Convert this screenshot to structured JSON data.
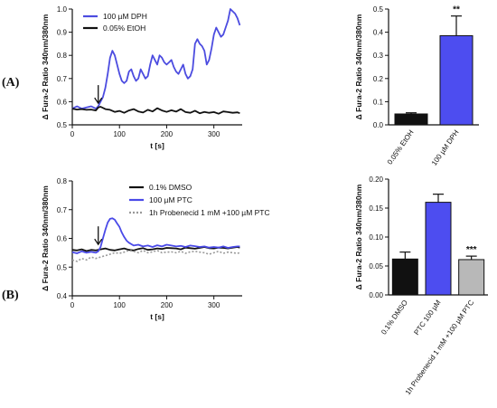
{
  "panels": {
    "a": {
      "label": "(A)"
    },
    "b": {
      "label": "(B)"
    }
  },
  "colors": {
    "dph": "#4c4ce0",
    "ptc": "#4a4ae8",
    "ethanol": "#111111",
    "dmso": "#111111",
    "probenecid": "#999999",
    "bar_black": "#111111",
    "bar_blue": "#4d4df0",
    "bar_grey": "#b8b8b8"
  },
  "chart_data": [
    {
      "id": "a_trace",
      "type": "line",
      "xlabel": "t [s]",
      "ylabel": "Δ Fura-2 Ratio 340nm/380nm",
      "xlim": [
        0,
        360
      ],
      "ylim": [
        0.5,
        1.0
      ],
      "xticks": [
        0,
        100,
        200,
        300
      ],
      "yticks": [
        0.5,
        0.6,
        0.7,
        0.8,
        0.9,
        1.0
      ],
      "ytick_labels": [
        "0.5",
        "0.6",
        "0.7",
        "0.8",
        "0.9",
        "1.0"
      ],
      "arrow_at_x": 55,
      "legend_position": "top-left",
      "series": [
        {
          "name": "100 µM DPH",
          "color": "#4c4ce0",
          "x": [
            0,
            10,
            20,
            30,
            40,
            50,
            55,
            60,
            65,
            70,
            75,
            80,
            85,
            90,
            95,
            100,
            105,
            110,
            115,
            120,
            125,
            130,
            135,
            140,
            145,
            150,
            155,
            160,
            165,
            170,
            175,
            180,
            185,
            190,
            195,
            200,
            205,
            210,
            215,
            220,
            225,
            230,
            235,
            240,
            245,
            250,
            255,
            260,
            265,
            270,
            275,
            280,
            285,
            290,
            295,
            300,
            305,
            310,
            315,
            320,
            325,
            330,
            335,
            340,
            345,
            350,
            355
          ],
          "y": [
            0.57,
            0.58,
            0.57,
            0.575,
            0.58,
            0.57,
            0.58,
            0.6,
            0.62,
            0.66,
            0.72,
            0.79,
            0.82,
            0.8,
            0.76,
            0.72,
            0.69,
            0.68,
            0.69,
            0.73,
            0.74,
            0.71,
            0.69,
            0.7,
            0.74,
            0.72,
            0.7,
            0.71,
            0.76,
            0.8,
            0.78,
            0.76,
            0.8,
            0.79,
            0.77,
            0.76,
            0.77,
            0.78,
            0.75,
            0.73,
            0.72,
            0.74,
            0.76,
            0.72,
            0.7,
            0.71,
            0.74,
            0.85,
            0.87,
            0.85,
            0.84,
            0.82,
            0.76,
            0.78,
            0.83,
            0.89,
            0.92,
            0.9,
            0.88,
            0.89,
            0.92,
            0.95,
            1.0,
            0.99,
            0.98,
            0.96,
            0.93
          ]
        },
        {
          "name": "0.05% EtOH",
          "color": "#111111",
          "x": [
            0,
            10,
            20,
            30,
            40,
            50,
            55,
            60,
            70,
            80,
            90,
            100,
            110,
            120,
            130,
            140,
            150,
            160,
            170,
            180,
            190,
            200,
            210,
            220,
            230,
            240,
            250,
            260,
            270,
            280,
            290,
            300,
            310,
            320,
            330,
            340,
            350,
            355
          ],
          "y": [
            0.57,
            0.566,
            0.568,
            0.565,
            0.566,
            0.562,
            0.575,
            0.578,
            0.568,
            0.565,
            0.556,
            0.56,
            0.552,
            0.562,
            0.568,
            0.558,
            0.553,
            0.565,
            0.558,
            0.572,
            0.562,
            0.556,
            0.563,
            0.557,
            0.568,
            0.555,
            0.552,
            0.561,
            0.55,
            0.556,
            0.552,
            0.555,
            0.548,
            0.558,
            0.555,
            0.552,
            0.554,
            0.55
          ]
        }
      ]
    },
    {
      "id": "a_bar",
      "type": "bar",
      "ylabel": "Δ Fura-2 Ratio 340nm/380nm",
      "ylim": [
        0,
        0.5
      ],
      "yticks": [
        0.0,
        0.1,
        0.2,
        0.3,
        0.4,
        0.5
      ],
      "ytick_labels": [
        "0.0",
        "0.1",
        "0.2",
        "0.3",
        "0.4",
        "0.5"
      ],
      "categories": [
        "0.05% EtOH",
        "100 µM DPH"
      ],
      "values": [
        0.047,
        0.385
      ],
      "errors": [
        0.005,
        0.085
      ],
      "colors": [
        "#111111",
        "#4d4df0"
      ],
      "annotations": [
        "",
        "**"
      ]
    },
    {
      "id": "b_trace",
      "type": "line",
      "xlabel": "t [s]",
      "ylabel": "Δ Fura-2 Ratio 340nm/380nm",
      "xlim": [
        0,
        360
      ],
      "ylim": [
        0.4,
        0.8
      ],
      "xticks": [
        0,
        100,
        200,
        300
      ],
      "yticks": [
        0.4,
        0.5,
        0.6,
        0.7,
        0.8
      ],
      "ytick_labels": [
        "0.4",
        "0.5",
        "0.6",
        "0.7",
        "0.8"
      ],
      "arrow_at_x": 55,
      "legend_position": "top-right",
      "series": [
        {
          "name": "0.1% DMSO",
          "color": "#111111",
          "x": [
            0,
            10,
            20,
            30,
            40,
            50,
            60,
            70,
            80,
            90,
            100,
            110,
            120,
            130,
            140,
            150,
            160,
            170,
            180,
            190,
            200,
            210,
            220,
            230,
            240,
            250,
            260,
            270,
            280,
            290,
            300,
            310,
            320,
            330,
            340,
            350,
            355
          ],
          "y": [
            0.56,
            0.558,
            0.562,
            0.556,
            0.56,
            0.558,
            0.562,
            0.565,
            0.56,
            0.558,
            0.562,
            0.565,
            0.56,
            0.558,
            0.563,
            0.566,
            0.56,
            0.562,
            0.565,
            0.563,
            0.567,
            0.566,
            0.565,
            0.562,
            0.568,
            0.566,
            0.564,
            0.567,
            0.57,
            0.566,
            0.565,
            0.568,
            0.567,
            0.565,
            0.568,
            0.57,
            0.568
          ]
        },
        {
          "name": "100 µM PTC",
          "color": "#4a4ae8",
          "x": [
            0,
            10,
            20,
            30,
            40,
            50,
            55,
            60,
            65,
            70,
            75,
            80,
            85,
            90,
            95,
            100,
            105,
            110,
            115,
            120,
            130,
            140,
            150,
            160,
            170,
            180,
            190,
            200,
            210,
            220,
            230,
            240,
            250,
            260,
            270,
            280,
            290,
            300,
            310,
            320,
            330,
            340,
            350,
            355
          ],
          "y": [
            0.552,
            0.548,
            0.555,
            0.55,
            0.553,
            0.55,
            0.555,
            0.57,
            0.6,
            0.63,
            0.655,
            0.668,
            0.67,
            0.665,
            0.652,
            0.64,
            0.62,
            0.605,
            0.592,
            0.585,
            0.575,
            0.578,
            0.572,
            0.575,
            0.57,
            0.576,
            0.572,
            0.578,
            0.575,
            0.572,
            0.574,
            0.57,
            0.575,
            0.573,
            0.57,
            0.572,
            0.568,
            0.57,
            0.568,
            0.572,
            0.567,
            0.57,
            0.572,
            0.572
          ]
        },
        {
          "name": "1h Probenecid 1 mM +100 µM PTC",
          "color": "#999999",
          "x": [
            0,
            10,
            20,
            30,
            40,
            50,
            60,
            70,
            80,
            90,
            100,
            110,
            120,
            130,
            140,
            150,
            160,
            170,
            180,
            190,
            200,
            210,
            220,
            230,
            240,
            250,
            260,
            270,
            280,
            290,
            300,
            310,
            320,
            330,
            340,
            350,
            355
          ],
          "y": [
            0.525,
            0.52,
            0.53,
            0.525,
            0.535,
            0.53,
            0.535,
            0.54,
            0.545,
            0.55,
            0.548,
            0.552,
            0.558,
            0.555,
            0.55,
            0.558,
            0.55,
            0.553,
            0.558,
            0.55,
            0.552,
            0.553,
            0.55,
            0.555,
            0.548,
            0.553,
            0.555,
            0.552,
            0.55,
            0.545,
            0.55,
            0.555,
            0.548,
            0.552,
            0.55,
            0.548,
            0.55
          ]
        }
      ]
    },
    {
      "id": "b_bar",
      "type": "bar",
      "ylabel": "Δ Fura-2 Ratio 340nm/380nm",
      "ylim": [
        0,
        0.2
      ],
      "yticks": [
        0.0,
        0.05,
        0.1,
        0.15,
        0.2
      ],
      "ytick_labels": [
        "0.00",
        "0.05",
        "0.10",
        "0.15",
        "0.20"
      ],
      "categories": [
        "0.1% DMSO",
        "PTC 100 µM",
        "1h Probenecid 1 mM +100 µM PTC"
      ],
      "values": [
        0.062,
        0.16,
        0.061
      ],
      "errors": [
        0.012,
        0.014,
        0.006
      ],
      "colors": [
        "#111111",
        "#4d4df0",
        "#b8b8b8"
      ],
      "annotations": [
        "",
        "",
        "***"
      ]
    }
  ]
}
